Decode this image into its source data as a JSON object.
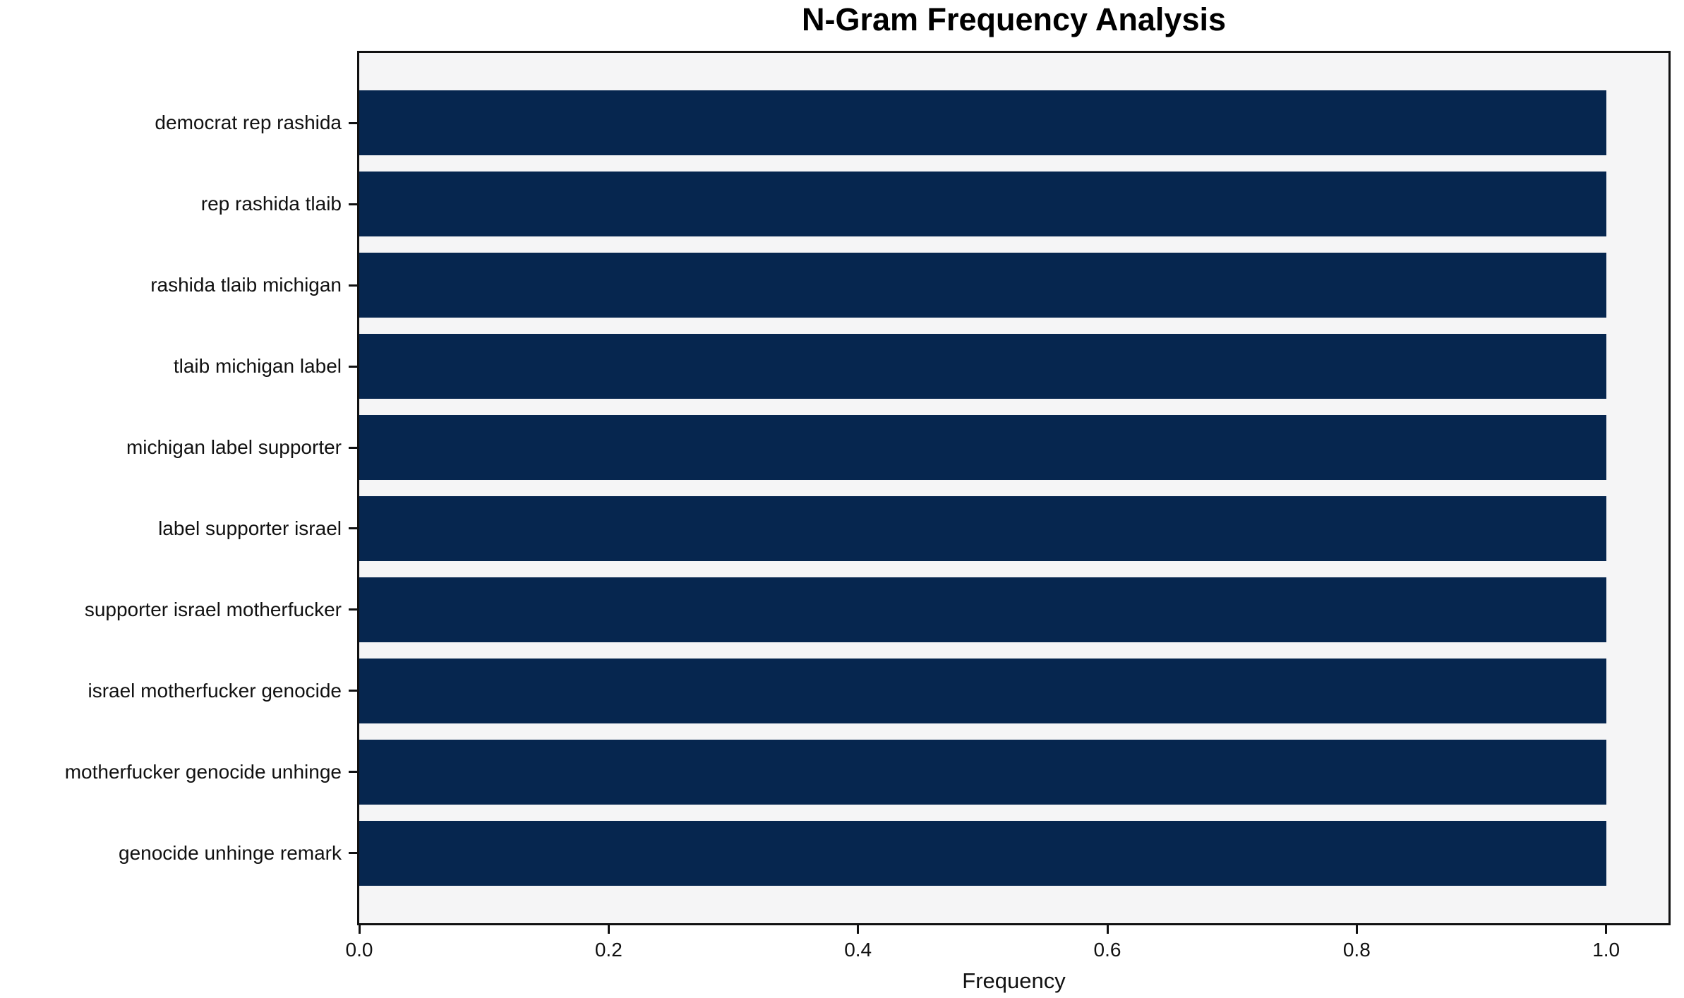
{
  "chart_data": {
    "type": "bar",
    "orientation": "horizontal",
    "title": "N-Gram Frequency Analysis",
    "xlabel": "Frequency",
    "ylabel": "",
    "categories": [
      "democrat rep rashida",
      "rep rashida tlaib",
      "rashida tlaib michigan",
      "tlaib michigan label",
      "michigan label supporter",
      "label supporter israel",
      "supporter israel motherfucker",
      "israel motherfucker genocide",
      "motherfucker genocide unhinge",
      "genocide unhinge remark"
    ],
    "values": [
      1.0,
      1.0,
      1.0,
      1.0,
      1.0,
      1.0,
      1.0,
      1.0,
      1.0,
      1.0
    ],
    "xticks": [
      "0.0",
      "0.2",
      "0.4",
      "0.6",
      "0.8",
      "1.0"
    ],
    "xtick_values": [
      0.0,
      0.2,
      0.4,
      0.6,
      0.8,
      1.0
    ],
    "xlim": [
      0,
      1.05
    ],
    "grid": false,
    "legend_position": "none",
    "bar_color": "#06264f",
    "plot_bg_color": "#f5f5f6",
    "figure_bg_color": "#ffffff",
    "spine_color": "#111111"
  }
}
